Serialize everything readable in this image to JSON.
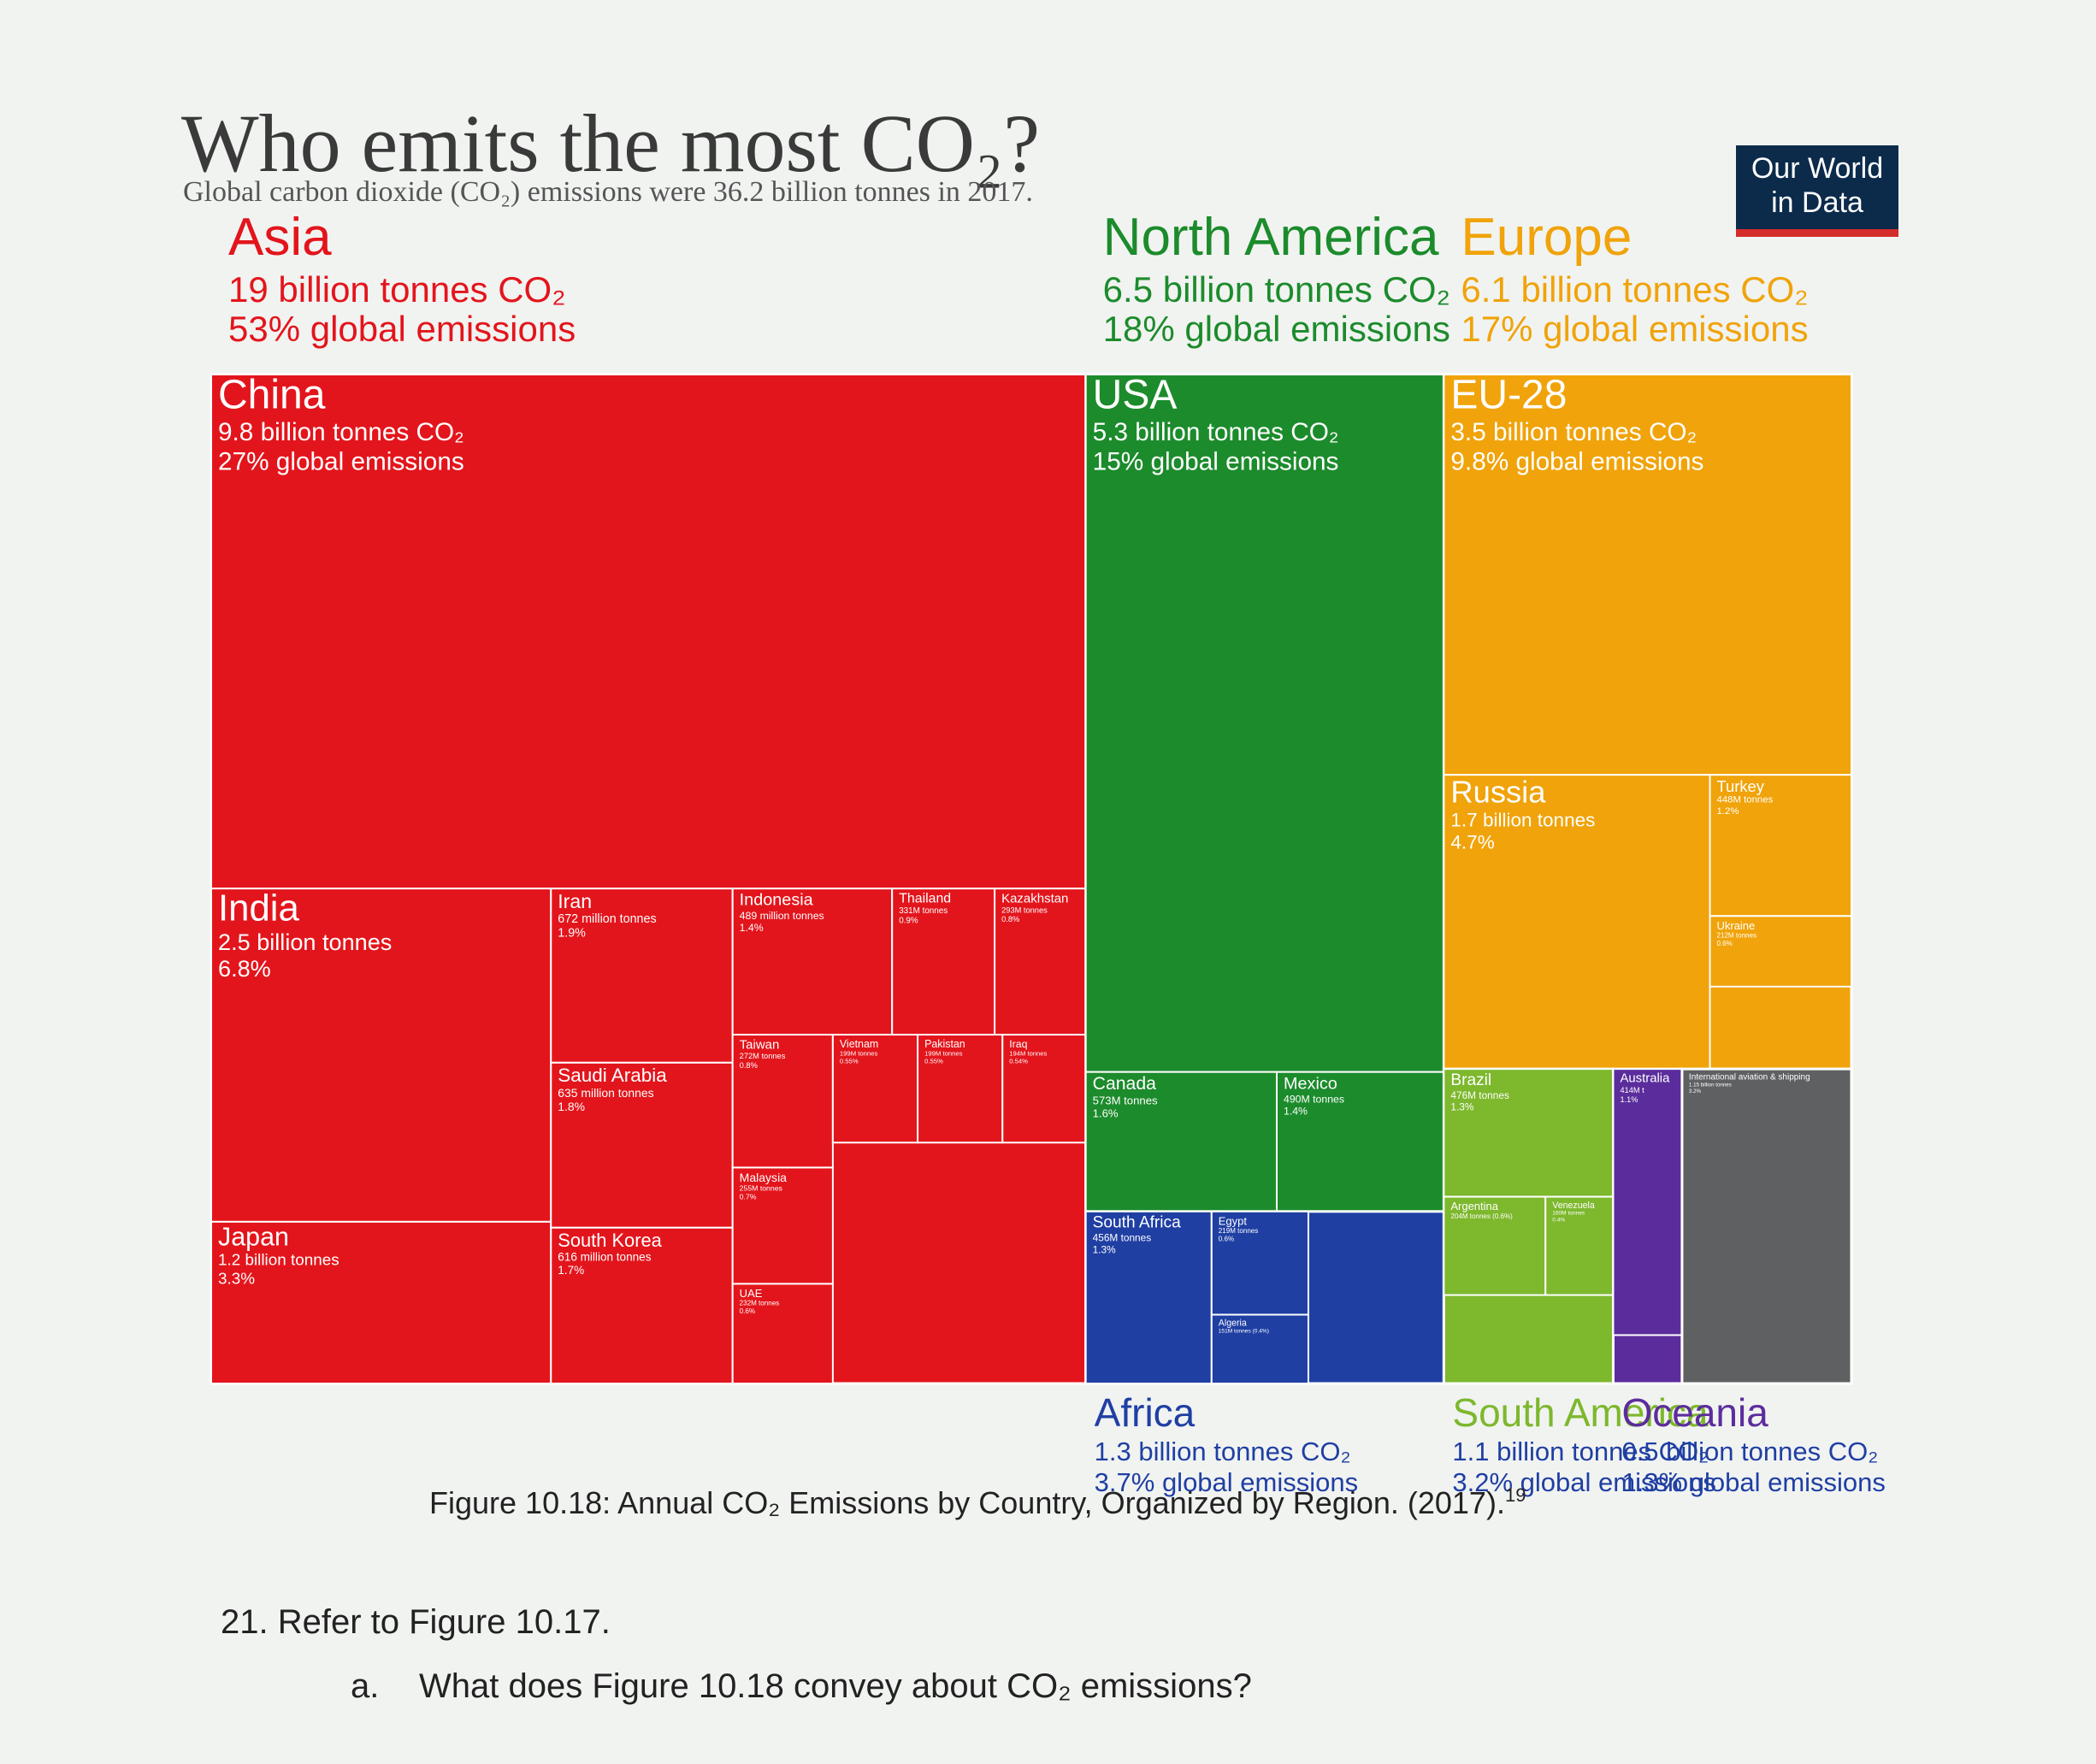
{
  "chart_data": {
    "type": "treemap",
    "title": "Who emits the most CO₂?",
    "subtitle": "Global carbon dioxide (CO₂) emissions were 36.2 billion tonnes in 2017.",
    "logo": [
      "Our World",
      "in Data"
    ],
    "regions": [
      {
        "name": "Asia",
        "color": "#e3151c",
        "share": 53,
        "lines": [
          "19 billion tonnes CO₂",
          "53% global emissions"
        ],
        "countries": [
          {
            "name": "China",
            "share": 27,
            "lines": [
              "9.8 billion tonnes CO₂",
              "27% global emissions"
            ]
          },
          {
            "name": "India",
            "share": 6.8,
            "lines": [
              "2.5 billion tonnes",
              "6.8%"
            ]
          },
          {
            "name": "Japan",
            "share": 3.3,
            "lines": [
              "1.2 billion tonnes",
              "3.3%"
            ]
          },
          {
            "name": "Iran",
            "share": 1.9,
            "lines": [
              "672 million tonnes",
              "1.9%"
            ]
          },
          {
            "name": "Saudi Arabia",
            "share": 1.8,
            "lines": [
              "635 million tonnes",
              "1.8%"
            ]
          },
          {
            "name": "South Korea",
            "share": 1.7,
            "lines": [
              "616 million tonnes",
              "1.7%"
            ]
          },
          {
            "name": "Indonesia",
            "share": 1.4,
            "lines": [
              "489 million tonnes",
              "1.4%"
            ]
          },
          {
            "name": "Thailand",
            "share": 0.9,
            "lines": [
              "331M tonnes",
              "0.9%"
            ]
          },
          {
            "name": "Kazakhstan",
            "share": 0.8,
            "lines": [
              "293M tonnes",
              "0.8%"
            ]
          },
          {
            "name": "Taiwan",
            "share": 0.8,
            "lines": [
              "272M tonnes",
              "0.8%"
            ]
          },
          {
            "name": "Malaysia",
            "share": 0.7,
            "lines": [
              "255M tonnes",
              "0.7%"
            ]
          },
          {
            "name": "UAE",
            "share": 0.6,
            "lines": [
              "232M tonnes",
              "0.6%"
            ]
          },
          {
            "name": "Vietnam",
            "share": 0.55,
            "lines": [
              "199M tonnes",
              "0.55%"
            ]
          },
          {
            "name": "Pakistan",
            "share": 0.55,
            "lines": [
              "199M tonnes",
              "0.55%"
            ]
          },
          {
            "name": "Iraq",
            "share": 0.54,
            "lines": [
              "194M tonnes",
              "0.54%"
            ]
          }
        ]
      },
      {
        "name": "North America",
        "color": "#1c8b2c",
        "share": 18,
        "lines": [
          "6.5 billion tonnes CO₂",
          "18% global emissions"
        ],
        "countries": [
          {
            "name": "USA",
            "share": 15,
            "lines": [
              "5.3 billion tonnes CO₂",
              "15% global emissions"
            ]
          },
          {
            "name": "Canada",
            "share": 1.6,
            "lines": [
              "573M tonnes",
              "1.6%"
            ]
          },
          {
            "name": "Mexico",
            "share": 1.4,
            "lines": [
              "490M tonnes",
              "1.4%"
            ]
          }
        ]
      },
      {
        "name": "Europe",
        "color": "#f0a30a",
        "share": 17,
        "lines": [
          "6.1 billion tonnes CO₂",
          "17% global emissions"
        ],
        "countries": [
          {
            "name": "EU-28",
            "share": 9.8,
            "lines": [
              "3.5 billion tonnes CO₂",
              "9.8% global emissions"
            ]
          },
          {
            "name": "Russia",
            "share": 4.7,
            "lines": [
              "1.7 billion tonnes",
              "4.7%"
            ]
          },
          {
            "name": "Turkey",
            "share": 1.2,
            "lines": [
              "448M tonnes",
              "1.2%"
            ]
          },
          {
            "name": "Ukraine",
            "share": 0.6,
            "lines": [
              "212M tonnes",
              "0.6%"
            ]
          }
        ]
      },
      {
        "name": "Africa",
        "color": "#1f3fa3",
        "share": 3.7,
        "lines": [
          "1.3 billion tonnes CO₂",
          "3.7% global emissions"
        ],
        "countries": [
          {
            "name": "South Africa",
            "share": 1.3,
            "lines": [
              "456M tonnes",
              "1.3%"
            ]
          },
          {
            "name": "Egypt",
            "share": 0.6,
            "lines": [
              "219M tonnes",
              "0.6%"
            ]
          },
          {
            "name": "Algeria",
            "share": 0.4,
            "lines": [
              "151M tonnes (0.4%)"
            ]
          }
        ]
      },
      {
        "name": "South America",
        "color": "#7db82d",
        "share": 3.2,
        "lines": [
          "1.1 billion tonnes CO₂",
          "3.2% global emissions"
        ],
        "countries": [
          {
            "name": "Brazil",
            "share": 1.3,
            "lines": [
              "476M tonnes",
              "1.3%"
            ]
          },
          {
            "name": "Argentina",
            "share": 0.6,
            "lines": [
              "204M tonnes (0.6%)"
            ]
          },
          {
            "name": "Venezuela",
            "share": 0.4,
            "lines": [
              "160M tonnes",
              "0.4%"
            ]
          }
        ]
      },
      {
        "name": "Oceania",
        "color": "#5b2d9c",
        "share": 1.3,
        "lines": [
          "0.5 billion tonnes CO₂",
          "1.3% global emissions"
        ],
        "countries": [
          {
            "name": "Australia",
            "share": 1.1,
            "lines": [
              "414M t",
              "1.1%"
            ]
          }
        ]
      },
      {
        "name": "International aviation & shipping",
        "color": "#5f6062",
        "share": 3.2,
        "lines": [
          "1.15 billion tonnes",
          "3.2%"
        ],
        "countries": []
      }
    ],
    "caption": "Figure 10.18: Annual CO₂ Emissions by Country, Organized by Region. (2017).",
    "caption_note": "19",
    "question": "21. Refer to Figure 10.17.",
    "subquestion_marker": "a.",
    "subquestion": "What does Figure 10.18 convey about CO₂ emissions?"
  }
}
